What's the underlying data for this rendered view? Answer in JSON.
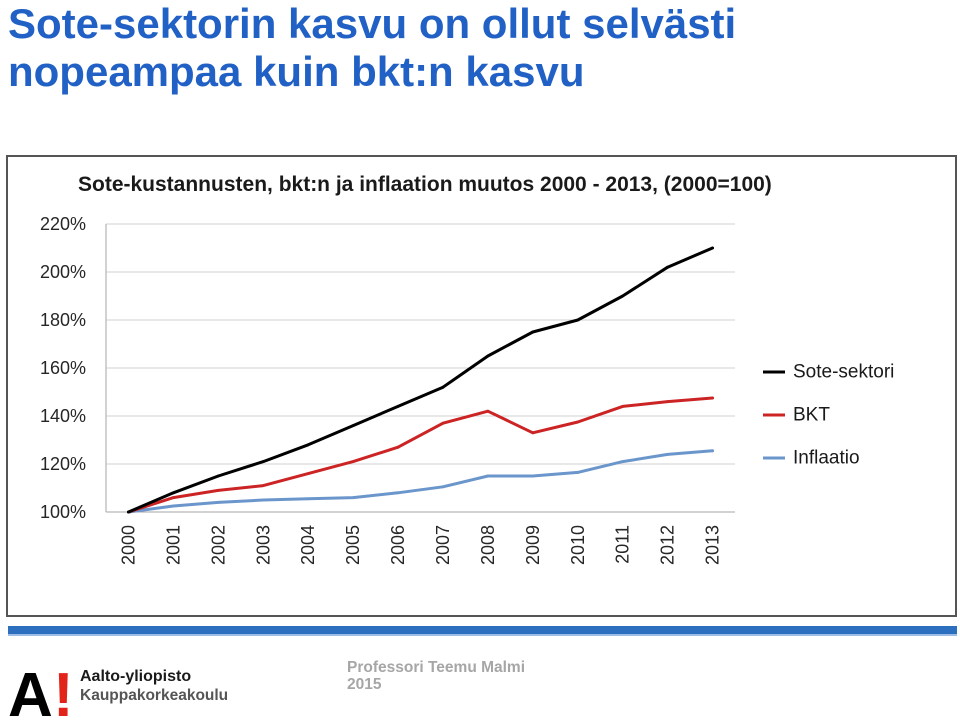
{
  "slide": {
    "title_line1": "Sote-sektorin kasvu on ollut selvästi",
    "title_line2": "nopeampaa kuin bkt:n kasvu",
    "title_color": "#2160c4"
  },
  "chart_data": {
    "type": "line",
    "title": "Sote-kustannusten, bkt:n ja inflaation muutos 2000 - 2013, (2000=100)",
    "categories": [
      "2000",
      "2001",
      "2002",
      "2003",
      "2004",
      "2005",
      "2006",
      "2007",
      "2008",
      "2009",
      "2010",
      "2011",
      "2012",
      "2013"
    ],
    "ylim": [
      100,
      220
    ],
    "y_ticks": [
      100,
      120,
      140,
      160,
      180,
      200,
      220
    ],
    "y_tick_labels": [
      "100%",
      "120%",
      "140%",
      "160%",
      "180%",
      "200%",
      "220%"
    ],
    "grid": true,
    "legend": "right",
    "series": [
      {
        "name": "Sote-sektori",
        "color": "#000000",
        "values": [
          100,
          108,
          115,
          121,
          128,
          136,
          144,
          152,
          165,
          175,
          180,
          190,
          202,
          210
        ]
      },
      {
        "name": "BKT",
        "color": "#cc2424",
        "values": [
          100,
          106,
          109,
          111,
          116,
          121,
          127,
          137,
          142,
          133,
          137.5,
          144,
          146,
          147.5
        ]
      },
      {
        "name": "Inflaatio",
        "color": "#6b96cc",
        "values": [
          100,
          102.5,
          104,
          105,
          105.5,
          106,
          108,
          110.5,
          115,
          115,
          116.5,
          121,
          124,
          125.5
        ]
      }
    ]
  },
  "footer": {
    "bar_color": "#2c6fbf",
    "logo": {
      "mark_a": "A",
      "mark_exclaim": "!",
      "exclaim_color": "#e2231a",
      "name": "Aalto-yliopisto",
      "school": "Kauppakorkeakoulu"
    },
    "author": "Professori Teemu Malmi",
    "year": "2015"
  }
}
